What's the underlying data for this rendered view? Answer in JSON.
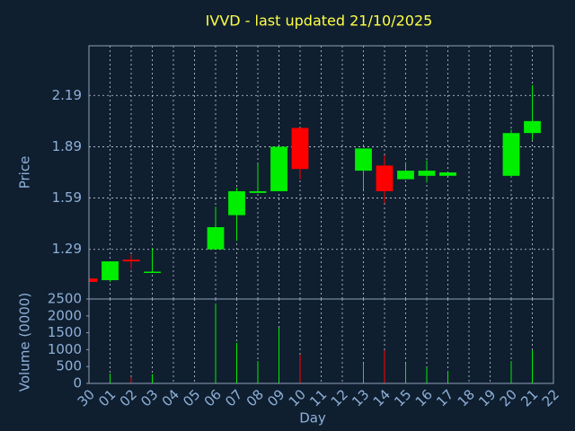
{
  "chart_data": {
    "type": "candlestick",
    "title": "IVVD - last updated 21/10/2025",
    "xlabel": "Day",
    "categories": [
      "30",
      "01",
      "02",
      "03",
      "04",
      "05",
      "06",
      "07",
      "08",
      "09",
      "10",
      "11",
      "12",
      "13",
      "14",
      "15",
      "16",
      "17",
      "18",
      "19",
      "20",
      "21",
      "22"
    ],
    "up_color": "#00ee00",
    "down_color": "#ff0000",
    "grid": true,
    "price": {
      "ylabel": "Price",
      "ylim": [
        1.0,
        2.48
      ],
      "yticks": [
        1.29,
        1.59,
        1.89,
        2.19
      ],
      "open": [
        1.12,
        1.11,
        1.23,
        1.155,
        null,
        null,
        1.29,
        1.49,
        1.62,
        1.63,
        2.0,
        null,
        null,
        1.75,
        1.78,
        1.7,
        1.72,
        1.72,
        null,
        null,
        1.72,
        1.97,
        null
      ],
      "high": [
        1.12,
        1.22,
        1.26,
        1.295,
        null,
        null,
        1.54,
        1.65,
        1.79,
        1.89,
        2.0,
        null,
        null,
        1.88,
        1.84,
        1.8,
        1.81,
        1.74,
        null,
        null,
        1.99,
        2.25,
        null
      ],
      "low": [
        1.1,
        1.1,
        1.175,
        1.155,
        null,
        null,
        1.29,
        1.34,
        1.62,
        1.63,
        1.7,
        null,
        null,
        1.64,
        1.56,
        1.7,
        1.68,
        1.72,
        null,
        null,
        1.71,
        1.93,
        null
      ],
      "close": [
        1.1,
        1.22,
        1.22,
        1.16,
        null,
        null,
        1.42,
        1.63,
        1.63,
        1.89,
        1.76,
        null,
        null,
        1.88,
        1.63,
        1.75,
        1.75,
        1.74,
        null,
        null,
        1.97,
        2.04,
        null
      ]
    },
    "volume": {
      "ylabel": "Volume (0000)",
      "ylim": [
        0,
        2500
      ],
      "yticks": [
        0,
        500,
        1000,
        1500,
        2000,
        2500
      ],
      "values": [
        0,
        290,
        190,
        270,
        null,
        null,
        2370,
        1200,
        660,
        1650,
        850,
        null,
        null,
        590,
        980,
        590,
        480,
        370,
        null,
        null,
        660,
        980,
        null
      ]
    }
  }
}
